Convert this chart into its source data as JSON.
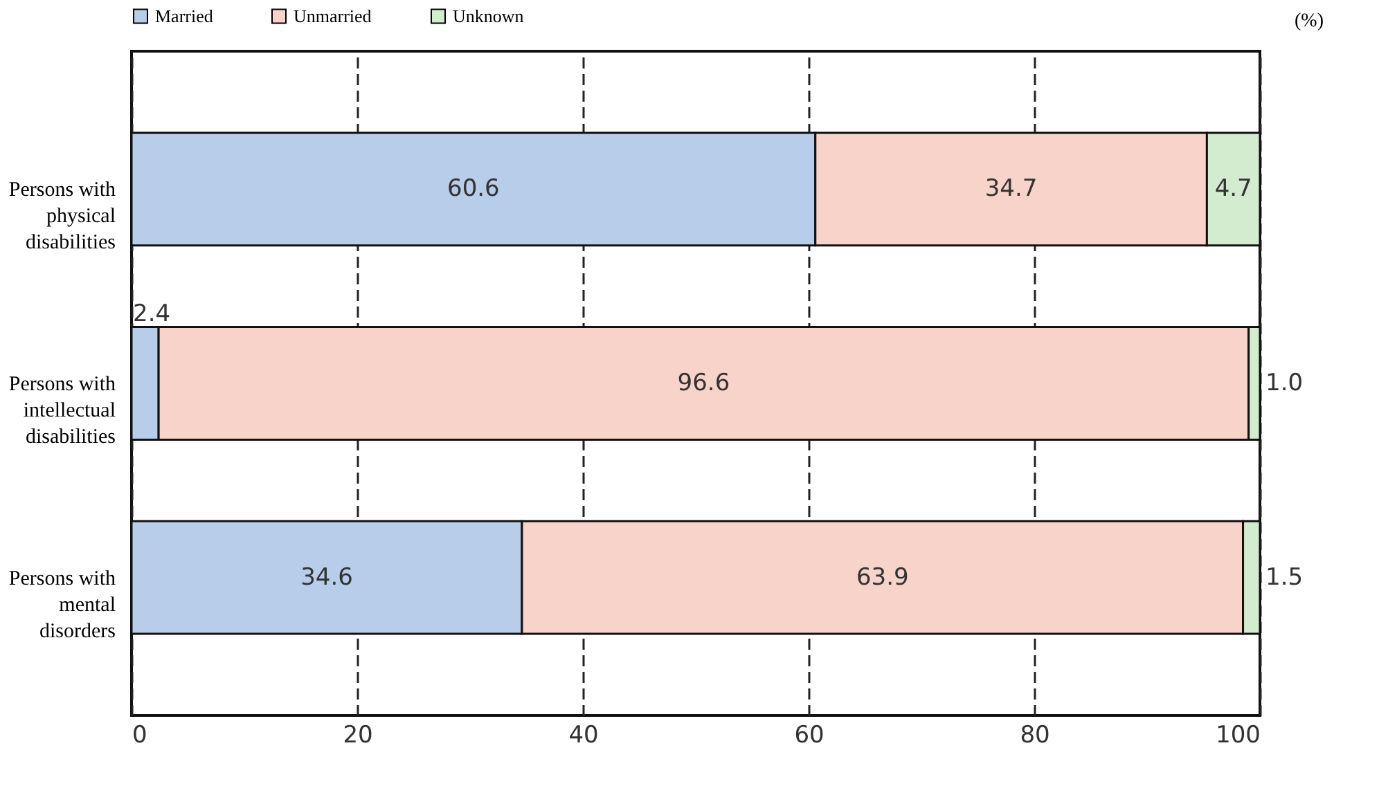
{
  "chart_data": {
    "type": "bar",
    "orientation": "horizontal",
    "stacked": true,
    "categories": [
      "Persons with physical disabilities",
      "Persons with intellectual disabilities",
      "Persons with mental disorders"
    ],
    "series": [
      {
        "name": "Married",
        "color": "#b7cde9",
        "values": [
          60.6,
          2.4,
          34.6
        ],
        "value_labels": [
          "60.6",
          "2.4",
          "34.6"
        ]
      },
      {
        "name": "Unmarried",
        "color": "#f8d3ca",
        "values": [
          34.7,
          96.6,
          63.9
        ],
        "value_labels": [
          "34.7",
          "96.6",
          "63.9"
        ]
      },
      {
        "name": "Unknown",
        "color": "#d3ebcf",
        "values": [
          4.7,
          1.0,
          1.5
        ],
        "value_labels": [
          "4.7",
          "1.0",
          "1.5"
        ]
      }
    ],
    "xlim": [
      0,
      100
    ],
    "xticks": [
      0,
      20,
      40,
      60,
      80,
      100
    ],
    "grid": "x",
    "line_style": "dashed",
    "legend": "top",
    "annotations": [
      "(%)"
    ]
  }
}
